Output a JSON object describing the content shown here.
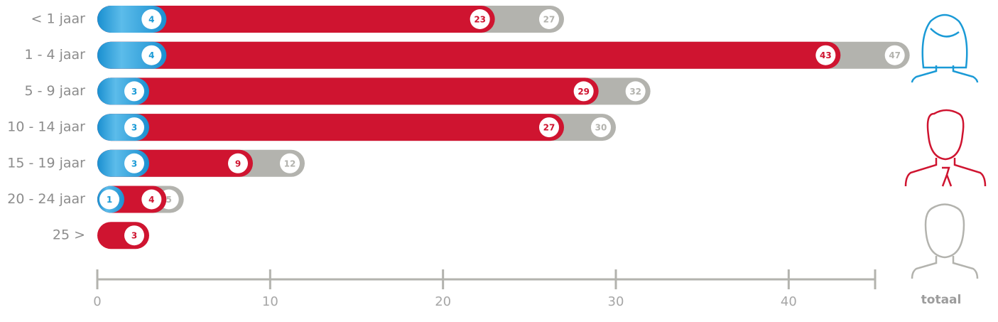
{
  "chart_data": {
    "type": "bar",
    "categories": [
      "< 1 jaar",
      "1 - 4 jaar",
      "5 - 9 jaar",
      "10 - 14 jaar",
      "15 - 19 jaar",
      "20 - 24 jaar",
      "25 >"
    ],
    "series": [
      {
        "color": "#1a9ad6",
        "values": [
          4,
          4,
          3,
          3,
          3,
          1,
          null
        ]
      },
      {
        "color": "#cf1430",
        "values": [
          23,
          43,
          29,
          27,
          9,
          4,
          3
        ]
      },
      {
        "name": "totaal",
        "color": "#b3b3ae",
        "values": [
          27,
          47,
          32,
          30,
          12,
          5,
          null
        ]
      }
    ],
    "xlim": [
      0,
      45
    ],
    "xticks": [
      0,
      10,
      20,
      30,
      40
    ]
  }
}
